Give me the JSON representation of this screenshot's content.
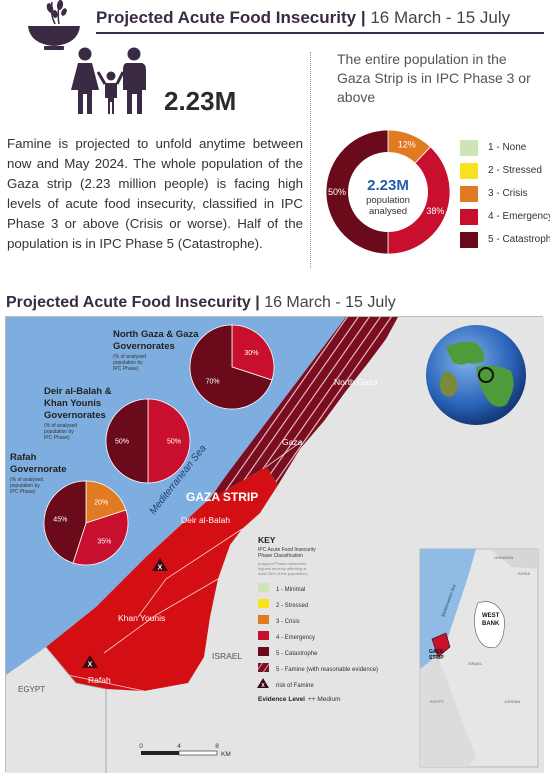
{
  "header": {
    "title": "Projected Acute Food Insecurity",
    "separator": "|",
    "dates": "16  March - 15 July",
    "population": "2.23M",
    "icons": [
      "bowl-of-grain-icon",
      "family-icon"
    ]
  },
  "famine_paragraph": "Famine is projected to unfold anytime between now and May 2024. The whole population of the Gaza strip (2.23 million people) is facing high levels of acute food insecurity, classified in IPC Phase 3 or above (Crisis or worse). Half of the population is in IPC Phase 5 (Catastrophe).",
  "population_summary": {
    "heading": "The entire population in the Gaza Strip is in IPC Phase 3 or above",
    "center_value": "2.23M",
    "center_label_1": "population",
    "center_label_2": "analysed"
  },
  "chart_data": {
    "type": "pie",
    "variant": "donut",
    "slices": [
      {
        "label": "12%",
        "phase": 3,
        "value": 12,
        "color": "#e07b24"
      },
      {
        "label": "38%",
        "phase": 4,
        "value": 38,
        "color": "#c8102e"
      },
      {
        "label": "50%",
        "phase": 5,
        "value": 50,
        "color": "#6b0a1a"
      }
    ],
    "legend": [
      {
        "label": "1 - None",
        "color": "#cde5b5"
      },
      {
        "label": "2 - Stressed",
        "color": "#f7e21d"
      },
      {
        "label": "3 - Crisis",
        "color": "#e07b24"
      },
      {
        "label": "4 - Emergency",
        "color": "#c8102e"
      },
      {
        "label": "5 - Catastrophe",
        "color": "#6b0a1a"
      }
    ]
  },
  "map": {
    "section_title": "Projected Acute Food Insecurity",
    "section_separator": "|",
    "section_dates": "16  March - 15 July",
    "sea_label": "Mediterranean Sea",
    "strip_label": "GAZA STRIP",
    "egypt_label": "EGYPT",
    "israel_label": "ISRAEL",
    "areas": {
      "north_gaza": {
        "label": "North Gaza",
        "phase": 5,
        "famine": true
      },
      "gaza": {
        "label": "Gaza",
        "phase": 5,
        "famine": true
      },
      "deir_al_balah": {
        "label": "Deir al-Balah",
        "phase": 4
      },
      "khan_younis": {
        "label": "Khan Younis",
        "phase": 4
      },
      "rafah": {
        "label": "Rafah",
        "phase": 4
      }
    },
    "governorate_pies": [
      {
        "title_1": "North Gaza & Gaza",
        "title_2": "Governorates",
        "note_1": "(% of analysed",
        "note_2": "population by",
        "note_3": "IPC Phase)",
        "slices": [
          {
            "label": "30%",
            "value": 30,
            "color": "#c8102e"
          },
          {
            "label": "70%",
            "value": 70,
            "color": "#6b0a1a"
          }
        ]
      },
      {
        "title_1": "Deir al-Balah &",
        "title_2": "Khan Younis",
        "title_3": "Governorates",
        "note_1": "(% of analysed",
        "note_2": "population by",
        "note_3": "IPC Phase)",
        "slices": [
          {
            "label": "50%",
            "value": 50,
            "color": "#c8102e"
          },
          {
            "label": "50%",
            "value": 50,
            "color": "#6b0a1a"
          }
        ]
      },
      {
        "title_1": "Rafah",
        "title_2": "Governorate",
        "note_1": "(% of analysed",
        "note_2": "population by",
        "note_3": "IPC Phase)",
        "slices": [
          {
            "label": "20%",
            "value": 20,
            "color": "#e07b24"
          },
          {
            "label": "35%",
            "value": 35,
            "color": "#c8102e"
          },
          {
            "label": "45%",
            "value": 45,
            "color": "#6b0a1a"
          }
        ]
      }
    ],
    "key": {
      "title": "KEY",
      "subtitle_1": "IPC Acute Food Insecurity",
      "subtitle_2": "Phase Classification",
      "note_1": "(mapped Phase represents",
      "note_2": "highest severity affecting at",
      "note_3": "least 20% of the population)",
      "items": [
        {
          "label": "1 - Minimal",
          "color": "#cde5b5"
        },
        {
          "label": "2 - Stressed",
          "color": "#f7e21d"
        },
        {
          "label": "3 - Crisis",
          "color": "#e07b24"
        },
        {
          "label": "4 - Emergency",
          "color": "#c8102e"
        },
        {
          "label": "5 - Catastrophe",
          "color": "#6b0a1a"
        },
        {
          "label": "5 - Famine (with reasonable evidence)",
          "color": "#6b0a1a"
        }
      ],
      "risk_label": "risk of Famine",
      "evidence_label": "Evidence Level",
      "evidence_value": "++ Medium"
    },
    "scale": {
      "t0": "0",
      "t1": "4",
      "t2": "8",
      "unit": "KM"
    },
    "inset": {
      "label_1": "WEST",
      "label_2": "BANK",
      "gaza_label_1": "GAZA",
      "gaza_label_2": "STRIP",
      "sea": "Mediterranean Sea",
      "lebanon": "LEBANON",
      "syria": "SYRIA",
      "israel": "ISRAEL",
      "egypt": "EGYPT",
      "jordan": "JORDAN"
    }
  }
}
